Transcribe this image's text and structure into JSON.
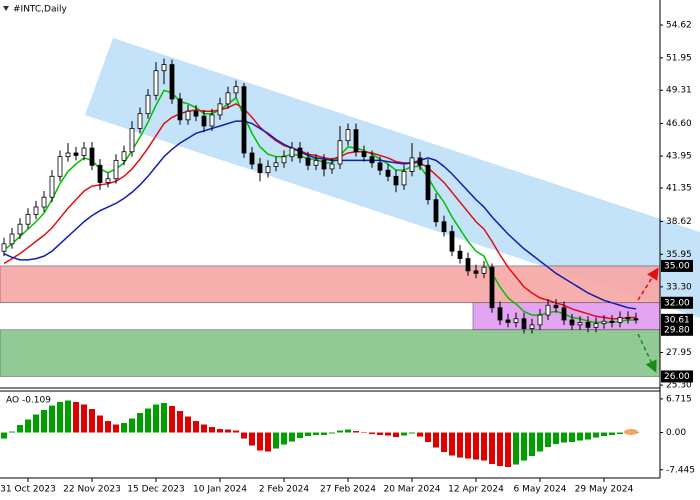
{
  "chart_data": [
    {
      "type": "candlestick",
      "title": "#INTC,Daily",
      "ylim": [
        25.06,
        56.66
      ],
      "yticks": [
        54.62,
        51.95,
        49.31,
        {
          "value": 46.6,
          "label": "46.60"
        },
        43.95,
        41.35,
        38.62,
        35.95,
        {
          "value": 33.3,
          "label": "33.30"
        },
        27.95,
        {
          "value": 25.3,
          "label": "25.30"
        }
      ],
      "levels": [
        {
          "value": 35,
          "label": "35.00"
        },
        {
          "value": 32,
          "label": "32.00"
        },
        30.61,
        {
          "value": 29.8,
          "label": "29.80"
        },
        {
          "value": 26,
          "label": "26.00"
        }
      ],
      "zones": [
        {
          "from": 32,
          "to": 35,
          "color": "#f7a7a6"
        },
        {
          "from": 26,
          "to": 29.8,
          "color": "#86c589"
        },
        {
          "from": 29.8,
          "to": 32,
          "color": "#e09cf0",
          "from_bar": 59
        }
      ],
      "up_color": "#ffffff",
      "down_color": "#000000",
      "ohlc": [
        [
          36.2,
          37.3,
          35.8,
          36.8
        ],
        [
          36.8,
          38.1,
          36.4,
          37.6
        ],
        [
          37.6,
          38.9,
          37.2,
          38.4
        ],
        [
          38.4,
          39.7,
          38.0,
          39.2
        ],
        [
          39.2,
          40.3,
          38.8,
          39.8
        ],
        [
          39.8,
          41.1,
          39.4,
          40.6
        ],
        [
          40.6,
          42.8,
          40.2,
          42.3
        ],
        [
          42.3,
          44.4,
          41.9,
          43.9
        ],
        [
          43.9,
          45.0,
          43.5,
          44.2
        ],
        [
          44.2,
          44.7,
          43.6,
          44.0
        ],
        [
          44.0,
          45.1,
          43.6,
          44.6
        ],
        [
          44.6,
          45.1,
          42.8,
          43.2
        ],
        [
          43.2,
          43.7,
          41.2,
          41.8
        ],
        [
          41.8,
          42.6,
          41.4,
          42.1
        ],
        [
          42.1,
          44.1,
          41.7,
          43.6
        ],
        [
          43.6,
          44.8,
          43.2,
          44.3
        ],
        [
          44.3,
          46.8,
          43.9,
          46.2
        ],
        [
          46.2,
          47.9,
          45.8,
          47.4
        ],
        [
          47.4,
          49.4,
          47.0,
          48.9
        ],
        [
          48.9,
          51.6,
          48.5,
          50.9
        ],
        [
          50.9,
          51.9,
          49.8,
          51.4
        ],
        [
          51.4,
          51.8,
          48.2,
          48.6
        ],
        [
          48.6,
          49.1,
          46.5,
          46.9
        ],
        [
          46.9,
          48.1,
          46.5,
          47.6
        ],
        [
          47.6,
          48.1,
          46.8,
          47.2
        ],
        [
          47.2,
          47.7,
          45.9,
          46.4
        ],
        [
          46.4,
          47.8,
          46.0,
          47.3
        ],
        [
          47.3,
          48.7,
          46.9,
          48.2
        ],
        [
          48.2,
          49.6,
          47.8,
          49.1
        ],
        [
          49.1,
          50.1,
          48.7,
          49.6
        ],
        [
          49.6,
          49.9,
          43.8,
          44.2
        ],
        [
          44.2,
          44.7,
          42.9,
          43.3
        ],
        [
          43.3,
          43.8,
          41.9,
          42.6
        ],
        [
          42.6,
          43.6,
          42.2,
          43.1
        ],
        [
          43.1,
          43.9,
          42.7,
          43.4
        ],
        [
          43.4,
          44.4,
          43.0,
          43.9
        ],
        [
          43.9,
          45.1,
          43.5,
          44.6
        ],
        [
          44.6,
          45.1,
          43.4,
          43.8
        ],
        [
          43.8,
          44.3,
          42.8,
          43.2
        ],
        [
          43.2,
          44.1,
          42.8,
          43.6
        ],
        [
          43.6,
          44.1,
          42.3,
          42.9
        ],
        [
          42.9,
          43.8,
          42.5,
          43.3
        ],
        [
          43.3,
          46.4,
          42.9,
          45.2
        ],
        [
          45.2,
          46.6,
          44.8,
          46.1
        ],
        [
          46.1,
          46.6,
          43.9,
          44.3
        ],
        [
          44.3,
          44.8,
          43.5,
          43.9
        ],
        [
          43.9,
          44.4,
          43.0,
          43.4
        ],
        [
          43.4,
          43.9,
          42.4,
          42.8
        ],
        [
          42.8,
          43.3,
          41.9,
          42.3
        ],
        [
          42.3,
          42.8,
          41.0,
          41.6
        ],
        [
          41.6,
          43.2,
          41.2,
          42.7
        ],
        [
          42.7,
          45.0,
          42.3,
          43.8
        ],
        [
          43.8,
          44.3,
          42.8,
          43.2
        ],
        [
          43.2,
          43.7,
          40.0,
          40.4
        ],
        [
          40.4,
          40.9,
          38.2,
          38.6
        ],
        [
          38.6,
          39.1,
          37.4,
          37.8
        ],
        [
          37.8,
          38.3,
          35.8,
          36.2
        ],
        [
          36.2,
          36.7,
          35.2,
          35.6
        ],
        [
          35.6,
          36.1,
          34.2,
          34.6
        ],
        [
          34.6,
          35.1,
          34.0,
          34.4
        ],
        [
          34.4,
          35.4,
          34.0,
          34.9
        ],
        [
          34.9,
          35.2,
          31.2,
          31.6
        ],
        [
          31.6,
          32.1,
          30.2,
          30.6
        ],
        [
          30.6,
          31.1,
          30.0,
          30.4
        ],
        [
          30.4,
          31.2,
          30.0,
          30.7
        ],
        [
          30.7,
          31.2,
          29.5,
          29.9
        ],
        [
          29.9,
          30.7,
          29.5,
          30.2
        ],
        [
          30.2,
          31.5,
          29.8,
          31.0
        ],
        [
          31.0,
          32.3,
          30.6,
          31.8
        ],
        [
          31.8,
          32.3,
          31.2,
          31.6
        ],
        [
          31.6,
          32.1,
          30.2,
          30.6
        ],
        [
          30.6,
          31.1,
          29.8,
          30.2
        ],
        [
          30.2,
          30.9,
          29.8,
          30.4
        ],
        [
          30.4,
          30.9,
          29.6,
          30.0
        ],
        [
          30.0,
          30.8,
          29.6,
          30.3
        ],
        [
          30.3,
          31.0,
          29.9,
          30.5
        ],
        [
          30.5,
          31.0,
          30.0,
          30.4
        ],
        [
          30.4,
          31.3,
          30.0,
          30.8
        ],
        [
          30.8,
          31.3,
          30.3,
          30.7
        ],
        [
          30.7,
          31.2,
          30.3,
          30.61
        ]
      ],
      "series": [
        {
          "color": "#00c000",
          "values": [
            36.3,
            36.8,
            37.4,
            38.0,
            38.6,
            39.3,
            40.4,
            41.7,
            42.7,
            43.3,
            43.8,
            43.6,
            42.9,
            42.6,
            42.9,
            43.4,
            44.4,
            45.5,
            46.7,
            48.1,
            49.3,
            49.1,
            48.4,
            48.2,
            47.9,
            47.4,
            47.4,
            47.7,
            48.2,
            48.7,
            47.2,
            45.8,
            44.7,
            44.1,
            43.9,
            43.9,
            44.1,
            44.0,
            43.7,
            43.7,
            43.4,
            43.4,
            44.0,
            44.7,
            44.6,
            44.4,
            44.1,
            43.7,
            43.3,
            42.8,
            42.8,
            43.1,
            43.1,
            42.2,
            41.1,
            40.2,
            39.0,
            38.0,
            37.0,
            36.2,
            35.8,
            34.4,
            33.3,
            32.4,
            31.9,
            31.3,
            31.0,
            31.0,
            31.2,
            31.3,
            31.1,
            30.8,
            30.7,
            30.5,
            30.4,
            30.4,
            30.4,
            30.5,
            30.6,
            30.6
          ]
        },
        {
          "color": "#e01010",
          "values": [
            35.2,
            35.6,
            36.0,
            36.5,
            37.0,
            37.5,
            38.1,
            38.9,
            39.7,
            40.4,
            41.1,
            41.5,
            41.6,
            41.7,
            41.9,
            42.3,
            42.9,
            43.7,
            44.6,
            45.6,
            46.6,
            47.1,
            47.4,
            47.6,
            47.7,
            47.6,
            47.6,
            47.7,
            47.9,
            48.2,
            47.8,
            47.1,
            46.3,
            45.7,
            45.2,
            44.8,
            44.6,
            44.4,
            44.1,
            44.0,
            43.8,
            43.7,
            43.9,
            44.2,
            44.3,
            44.3,
            44.2,
            44.0,
            43.8,
            43.5,
            43.4,
            43.4,
            43.4,
            43.0,
            42.4,
            41.8,
            41.0,
            40.2,
            39.4,
            38.6,
            38.0,
            37.0,
            35.9,
            34.9,
            34.1,
            33.3,
            32.8,
            32.4,
            32.2,
            32.0,
            31.8,
            31.5,
            31.3,
            31.1,
            30.9,
            30.8,
            30.7,
            30.7,
            30.8,
            30.8
          ]
        },
        {
          "color": "#1020b0",
          "values": [
            36.0,
            35.7,
            35.5,
            35.5,
            35.6,
            35.8,
            36.2,
            36.8,
            37.4,
            38.0,
            38.6,
            39.1,
            39.5,
            39.8,
            40.1,
            40.5,
            41.0,
            41.6,
            42.3,
            43.1,
            43.9,
            44.5,
            45.0,
            45.4,
            45.8,
            46.0,
            46.2,
            46.4,
            46.6,
            46.8,
            46.8,
            46.6,
            46.2,
            45.8,
            45.3,
            44.9,
            44.6,
            44.3,
            44.0,
            43.8,
            43.7,
            43.6,
            43.6,
            43.6,
            43.6,
            43.6,
            43.6,
            43.6,
            43.5,
            43.4,
            43.3,
            43.4,
            43.6,
            43.8,
            43.6,
            43.1,
            42.5,
            41.8,
            41.1,
            40.4,
            39.8,
            39.0,
            38.3,
            37.6,
            37.0,
            36.4,
            35.9,
            35.4,
            34.9,
            34.4,
            34.0,
            33.6,
            33.2,
            32.8,
            32.5,
            32.2,
            32.0,
            31.8,
            31.6,
            31.5
          ]
        }
      ]
    },
    {
      "type": "bar",
      "title": "AO -0.109",
      "ylim": [
        -9.09,
        8.3
      ],
      "yticks": [
        6.715,
        {
          "value": 0,
          "label": "0.00"
        },
        -7.445
      ],
      "up_color": "#00a000",
      "down_color": "#e00000",
      "categories": [
        null,
        null,
        null,
        "31 Oct 2023",
        null,
        null,
        null,
        null,
        null,
        null,
        null,
        "22 Nov 2023",
        null,
        null,
        null,
        null,
        null,
        null,
        null,
        "15 Dec 2023",
        null,
        null,
        null,
        null,
        null,
        null,
        null,
        "10 Jan 2024",
        null,
        null,
        null,
        null,
        null,
        null,
        null,
        "2 Feb 2024",
        null,
        null,
        null,
        null,
        null,
        null,
        null,
        "27 Feb 2024",
        null,
        null,
        null,
        null,
        null,
        null,
        null,
        "20 Mar 2024",
        null,
        null,
        null,
        null,
        null,
        null,
        null,
        "12 Apr 2024",
        null,
        null,
        null,
        null,
        null,
        null,
        null,
        "6 May 2024",
        null,
        null,
        null,
        null,
        null,
        null,
        null,
        "29 May 2024",
        null,
        null,
        null,
        null
      ],
      "values": [
        -1.2,
        0.2,
        1.5,
        2.6,
        3.6,
        4.5,
        5.4,
        6.1,
        6.4,
        6.1,
        5.6,
        4.7,
        3.4,
        2.3,
        1.6,
        1.9,
        2.8,
        3.9,
        4.8,
        5.6,
        5.9,
        5.3,
        4.3,
        3.2,
        2.3,
        1.6,
        1.1,
        0.7,
        0.6,
        0.4,
        -1.2,
        -2.6,
        -3.6,
        -3.8,
        -3.2,
        -2.4,
        -1.8,
        -1.1,
        -0.7,
        -0.5,
        -0.5,
        -0.2,
        0.4,
        0.6,
        0.3,
        0.0,
        -0.3,
        -0.5,
        -0.6,
        -0.9,
        -0.6,
        -0.2,
        -0.8,
        -1.9,
        -3.0,
        -3.9,
        -4.6,
        -5.0,
        -5.2,
        -5.4,
        -5.6,
        -6.3,
        -6.7,
        -6.9,
        -6.4,
        -5.6,
        -4.7,
        -3.8,
        -2.9,
        -2.3,
        -2.0,
        -1.9,
        -1.6,
        -1.4,
        -1.0,
        -0.7,
        -0.5,
        -0.3,
        -0.2,
        -0.109
      ]
    }
  ]
}
